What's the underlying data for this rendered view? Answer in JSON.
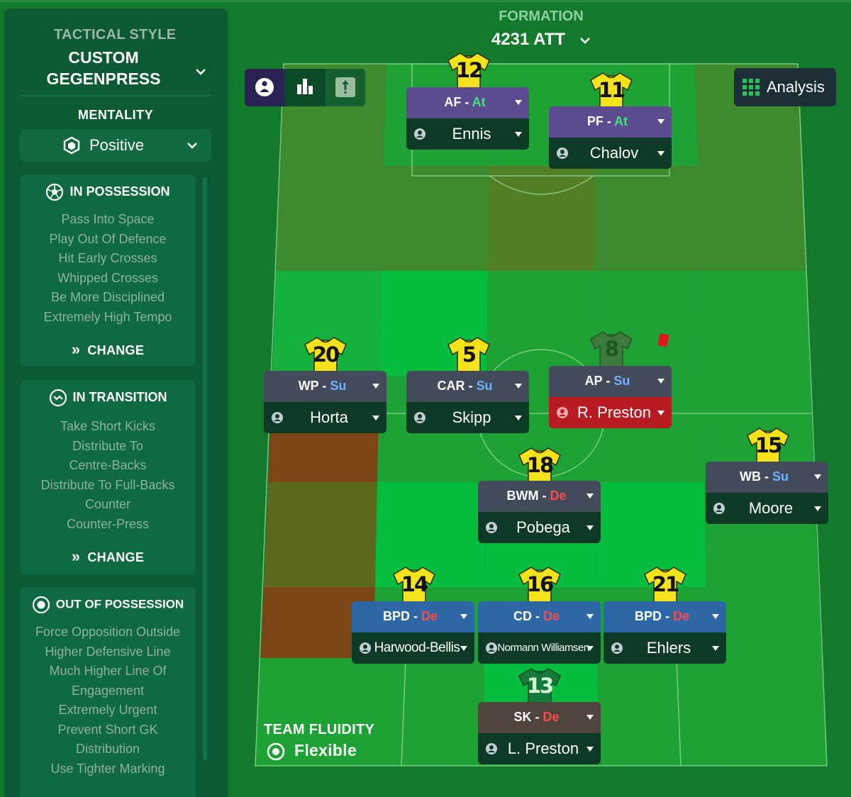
{
  "tactical_style": {
    "heading": "TACTICAL STYLE",
    "name_line1": "CUSTOM",
    "name_line2": "GEGENPRESS"
  },
  "mentality": {
    "label": "MENTALITY",
    "value": "Positive"
  },
  "in_possession": {
    "title": "IN POSSESSION",
    "items": [
      "Pass Into Space",
      "Play Out Of Defence",
      "Hit Early Crosses",
      "Whipped Crosses",
      "Be More Disciplined",
      "Extremely High Tempo"
    ],
    "change_label": "CHANGE"
  },
  "in_transition": {
    "title": "IN TRANSITION",
    "items": [
      "Take Short Kicks",
      "Distribute To",
      "Centre-Backs",
      "Distribute To Full-Backs",
      "Counter",
      "Counter-Press"
    ],
    "change_label": "CHANGE"
  },
  "out_of_possession": {
    "title": "OUT OF POSSESSION",
    "items": [
      "Force Opposition Outside",
      "Higher Defensive Line",
      "Much Higher Line Of",
      "Engagement",
      "Extremely Urgent",
      "Prevent Short GK",
      "Distribution",
      "Use Tighter Marking"
    ]
  },
  "formation": {
    "label": "FORMATION",
    "value": "4231 ATT"
  },
  "analysis": {
    "label": "Analysis"
  },
  "team_fluidity": {
    "label": "TEAM FLUIDITY",
    "value": "Flexible"
  },
  "players": [
    {
      "number": "12",
      "role": "AF",
      "duty": "At",
      "name": "Ennis"
    },
    {
      "number": "11",
      "role": "PF",
      "duty": "At",
      "name": "Chalov"
    },
    {
      "number": "20",
      "role": "WP",
      "duty": "Su",
      "name": "Horta"
    },
    {
      "number": "5",
      "role": "CAR",
      "duty": "Su",
      "name": "Skipp"
    },
    {
      "number": "8",
      "role": "AP",
      "duty": "Su",
      "name": "R. Preston"
    },
    {
      "number": "15",
      "role": "WB",
      "duty": "Su",
      "name": "Moore"
    },
    {
      "number": "18",
      "role": "BWM",
      "duty": "De",
      "name": "Pobega"
    },
    {
      "number": "14",
      "role": "BPD",
      "duty": "De",
      "name": "Harwood-Bellis"
    },
    {
      "number": "16",
      "role": "CD",
      "duty": "De",
      "name": "Normann Williamsen"
    },
    {
      "number": "21",
      "role": "BPD",
      "duty": "De",
      "name": "Ehlers"
    },
    {
      "number": "13",
      "role": "SK",
      "duty": "De",
      "name": "L. Preston"
    }
  ],
  "colors": {
    "panel": "#0b5a33",
    "accent_attack": "#44e27f",
    "accent_support": "#6fb1ff",
    "accent_defend": "#ff4a4a",
    "unavailable": "#b81c22"
  }
}
